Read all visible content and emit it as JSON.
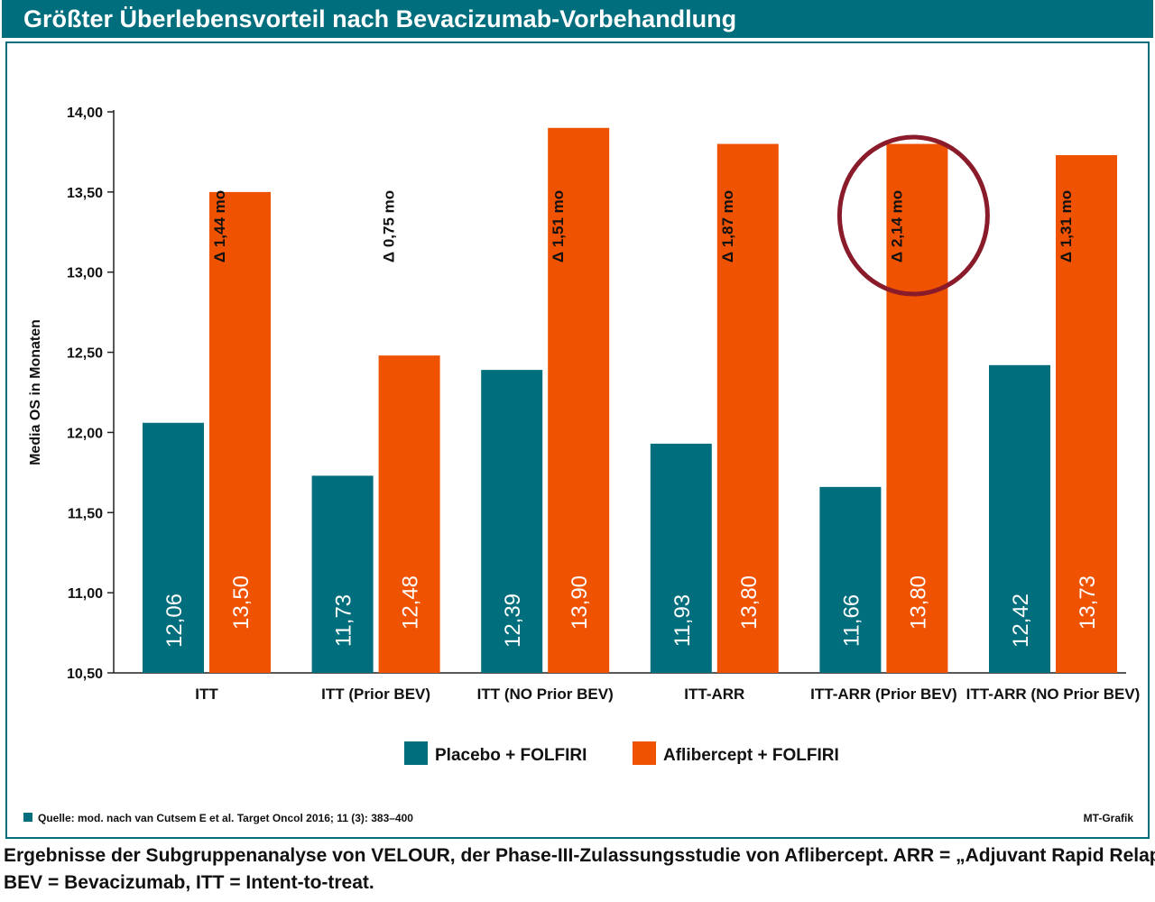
{
  "header": {
    "title": "Größter Überlebensvorteil nach Bevacizumab-Vorbehandlung"
  },
  "chart_data": {
    "type": "bar",
    "ylabel": "Media OS in Monaten",
    "xlabel": "",
    "ylim": [
      10.5,
      14.0
    ],
    "yticks": [
      "10,50",
      "11,00",
      "11,50",
      "12,00",
      "12,50",
      "13,00",
      "13,50",
      "14,00"
    ],
    "categories": [
      "ITT",
      "ITT (Prior BEV)",
      "ITT (NO Prior BEV)",
      "ITT-ARR",
      "ITT-ARR (Prior BEV)",
      "ITT-ARR (NO Prior BEV)"
    ],
    "series": [
      {
        "name": "Placebo + FOLFIRI",
        "color": "#006e7d",
        "values": [
          12.06,
          11.73,
          12.39,
          11.93,
          11.66,
          12.42
        ],
        "labels": [
          "12,06",
          "11,73",
          "12,39",
          "11,93",
          "11,66",
          "12,42"
        ]
      },
      {
        "name": "Aflibercept + FOLFIRI",
        "color": "#ef5200",
        "values": [
          13.5,
          12.48,
          13.9,
          13.8,
          13.8,
          13.73
        ],
        "labels": [
          "13,50",
          "12,48",
          "13,90",
          "13,80",
          "13,80",
          "13,73"
        ]
      }
    ],
    "deltas": [
      "Δ 1,44 mo",
      "Δ 0,75 mo",
      "Δ 1,51 mo",
      "Δ 1,87 mo",
      "Δ 2,14 mo",
      "Δ 1,31 mo"
    ],
    "highlighted_category": "ITT-ARR (Prior BEV)",
    "highlight_color": "#8a1b2b",
    "legend_position": "bottom",
    "grid": false
  },
  "footer": {
    "source": "Quelle: mod. nach van Cutsem E et al. Target Oncol 2016; 11 (3): 383–400",
    "credit": "MT-Grafik"
  },
  "caption": {
    "line1": "Ergebnisse der Subgruppenanalyse von VELOUR, der Phase-III-Zulassungsstudie von Aflibercept. ARR = „Adjuvant Rapid Relapser“,",
    "line2": "BEV = Bevacizumab, ITT = Intent-to-treat."
  }
}
